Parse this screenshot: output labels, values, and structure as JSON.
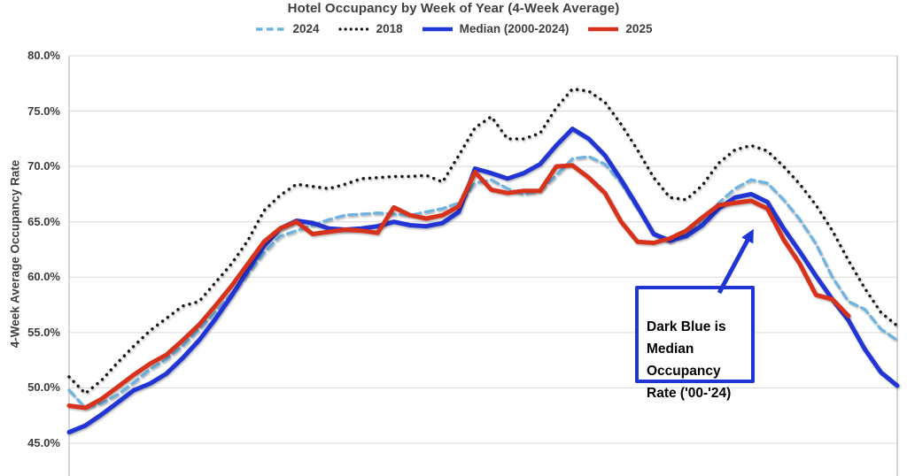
{
  "colors": {
    "grid": "#D9D9D9",
    "axis_border": "#BFBFBF",
    "heading_text": "#3F3F3F",
    "tick_text": "#3C3C3C",
    "annotation_border": "#2036D4",
    "series_2024": "#6FB3DF",
    "series_2018": "#141414",
    "series_median": "#2036D4",
    "series_2025": "#D7301F"
  },
  "y_axis": {
    "title": "4-Week Average Occupancy Rate",
    "ticks": [
      {
        "v": 80,
        "label": "80.0%"
      },
      {
        "v": 75,
        "label": "75.0%"
      },
      {
        "v": 70,
        "label": "70.0%"
      },
      {
        "v": 65,
        "label": "65.0%"
      },
      {
        "v": 60,
        "label": "60.0%"
      },
      {
        "v": 55,
        "label": "55.0%"
      },
      {
        "v": 50,
        "label": "50.0%"
      },
      {
        "v": 45,
        "label": "45.0%"
      }
    ]
  },
  "annotation": {
    "text": "Dark Blue is\nMedian\nOccupancy\nRate ('00-'24)"
  },
  "chart_data": {
    "type": "line",
    "title": "Hotel Occupancy by Week of Year (4-Week Average)",
    "xlabel": "",
    "ylabel": "4-Week Average Occupancy Rate",
    "ylim": [
      45,
      80
    ],
    "x_unit": "week-of-year",
    "x_count": 52,
    "grid": "horizontal-only",
    "legend_position": "top",
    "series": [
      {
        "key": "2024",
        "name": "2024",
        "style": "dashed",
        "color": "#6FB3DF",
        "values": [
          49.8,
          48.2,
          48.6,
          49.4,
          50.5,
          51.7,
          52.6,
          53.8,
          55.3,
          56.8,
          58.5,
          60.3,
          62.2,
          63.7,
          64.2,
          64.7,
          65.2,
          65.6,
          65.7,
          65.8,
          65.7,
          65.6,
          65.9,
          66.2,
          66.7,
          68.5,
          68.8,
          68.0,
          67.5,
          67.8,
          69.2,
          70.7,
          70.9,
          70.2,
          68.5,
          66.2,
          64.0,
          63.2,
          63.9,
          65.2,
          66.7,
          68.0,
          68.8,
          68.5,
          67.0,
          65.2,
          63.0,
          60.0,
          57.8,
          57.1,
          55.3,
          54.3
        ]
      },
      {
        "key": "2018",
        "name": "2018",
        "style": "dotted",
        "color": "#141414",
        "values": [
          51.0,
          49.5,
          50.7,
          52.3,
          53.8,
          55.2,
          56.3,
          57.4,
          57.8,
          59.5,
          61.2,
          63.3,
          66.0,
          67.4,
          68.4,
          68.2,
          68.0,
          68.4,
          68.9,
          69.0,
          69.1,
          69.1,
          69.2,
          68.6,
          71.0,
          73.5,
          74.5,
          72.5,
          72.5,
          73.0,
          75.3,
          77.0,
          76.8,
          75.8,
          73.8,
          71.5,
          69.0,
          67.2,
          67.0,
          68.3,
          70.3,
          71.5,
          71.9,
          71.4,
          70.0,
          68.4,
          66.5,
          64.2,
          61.5,
          59.0,
          56.8,
          55.6
        ]
      },
      {
        "key": "median",
        "name": "Median (2000-2024)",
        "style": "solid",
        "color": "#2036D4",
        "values": [
          46.0,
          46.6,
          47.6,
          48.7,
          49.8,
          50.4,
          51.3,
          52.7,
          54.3,
          56.2,
          58.3,
          60.6,
          62.8,
          64.4,
          65.1,
          64.9,
          64.4,
          64.3,
          64.4,
          64.6,
          65.0,
          64.7,
          64.6,
          64.9,
          65.9,
          69.8,
          69.4,
          68.9,
          69.4,
          70.2,
          71.9,
          73.4,
          72.5,
          71.0,
          68.8,
          66.4,
          63.9,
          63.3,
          63.7,
          64.7,
          66.2,
          67.2,
          67.5,
          66.8,
          64.4,
          62.3,
          60.1,
          58.0,
          56.1,
          53.5,
          51.4,
          50.2
        ]
      },
      {
        "key": "2025",
        "name": "2025",
        "style": "solid",
        "color": "#D7301F",
        "values": [
          48.4,
          48.2,
          49.0,
          50.1,
          51.2,
          52.2,
          53.0,
          54.3,
          55.7,
          57.4,
          59.2,
          61.2,
          63.2,
          64.4,
          65.0,
          63.9,
          64.1,
          64.3,
          64.2,
          64.0,
          66.3,
          65.6,
          65.3,
          65.6,
          66.4,
          69.5,
          67.9,
          67.6,
          67.8,
          67.8,
          70.0,
          70.1,
          69.0,
          67.6,
          65.0,
          63.2,
          63.1,
          63.5,
          64.2,
          65.4,
          66.5,
          66.7,
          66.9,
          66.2,
          63.4,
          61.2,
          58.4,
          58.0,
          56.5,
          null,
          null,
          null
        ]
      }
    ]
  }
}
